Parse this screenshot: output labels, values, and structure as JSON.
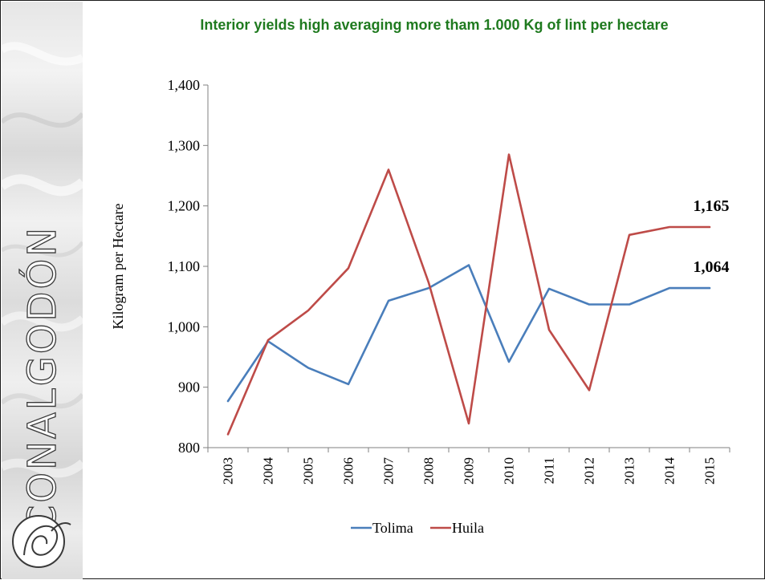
{
  "title": "Interior yields high averaging more tham 1.000 Kg of lint per hectare",
  "brand": "CONALGODÓN",
  "chart_data": {
    "type": "line",
    "x": [
      "2003",
      "2004",
      "2005",
      "2006",
      "2007",
      "2008",
      "2009",
      "2010",
      "2011",
      "2012",
      "2013",
      "2014",
      "2015"
    ],
    "ylabel": "Kilogram per Hectare",
    "xlabel": "",
    "ylim": [
      800,
      1400
    ],
    "yticks": [
      800,
      900,
      1000,
      1100,
      1200,
      1300,
      1400
    ],
    "ytick_labels": [
      "800",
      "900",
      "1,000",
      "1,100",
      "1,200",
      "1,300",
      "1,400"
    ],
    "grid": false,
    "legend": "bottom",
    "series": [
      {
        "name": "Tolima",
        "color": "#4a7ebb",
        "values": [
          877,
          976,
          932,
          905,
          1043,
          1064,
          1102,
          942,
          1063,
          1037,
          1037,
          1064,
          1064
        ]
      },
      {
        "name": "Huila",
        "color": "#be4b48",
        "values": [
          822,
          978,
          1027,
          1097,
          1260,
          1073,
          840,
          1285,
          995,
          895,
          1152,
          1165,
          1165
        ]
      }
    ],
    "annotations": [
      {
        "series": "Huila",
        "label": "1,165"
      },
      {
        "series": "Tolima",
        "label": "1,064"
      }
    ]
  }
}
